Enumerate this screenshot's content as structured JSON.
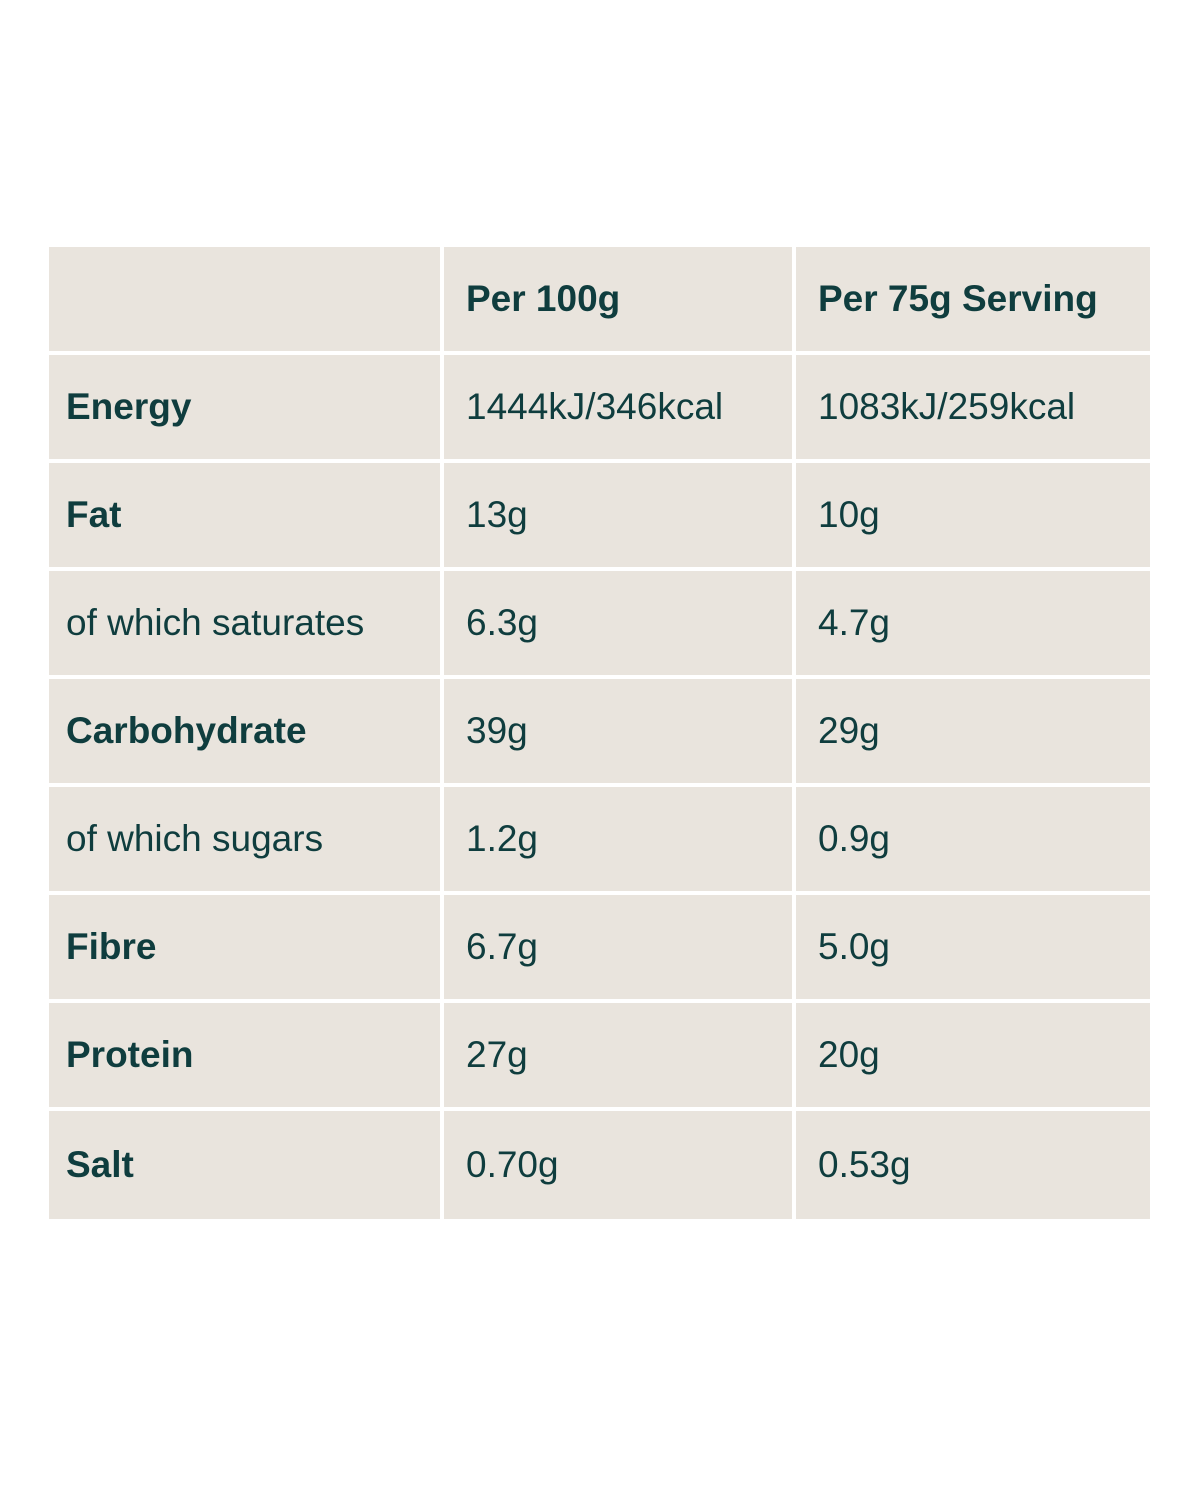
{
  "table": {
    "headers": [
      "",
      "Per 100g",
      "Per 75g Serving"
    ],
    "rows": [
      {
        "label": "Energy",
        "bold": true,
        "per100": "1444kJ/346kcal",
        "perServing": "1083kJ/259kcal"
      },
      {
        "label": "Fat",
        "bold": true,
        "per100": "13g",
        "perServing": "10g"
      },
      {
        "label": "of which saturates",
        "bold": false,
        "per100": "6.3g",
        "perServing": "4.7g"
      },
      {
        "label": "Carbohydrate",
        "bold": true,
        "per100": "39g",
        "perServing": "29g"
      },
      {
        "label": "of which sugars",
        "bold": false,
        "per100": "1.2g",
        "perServing": "0.9g"
      },
      {
        "label": "Fibre",
        "bold": true,
        "per100": "6.7g",
        "perServing": "5.0g"
      },
      {
        "label": "Protein",
        "bold": true,
        "per100": "27g",
        "perServing": "20g"
      },
      {
        "label": "Salt",
        "bold": true,
        "per100": "0.70g",
        "perServing": "0.53g"
      }
    ]
  },
  "colors": {
    "cell_background": "#e9e4dd",
    "text": "#0f3d3e",
    "divider": "#ffffff"
  }
}
